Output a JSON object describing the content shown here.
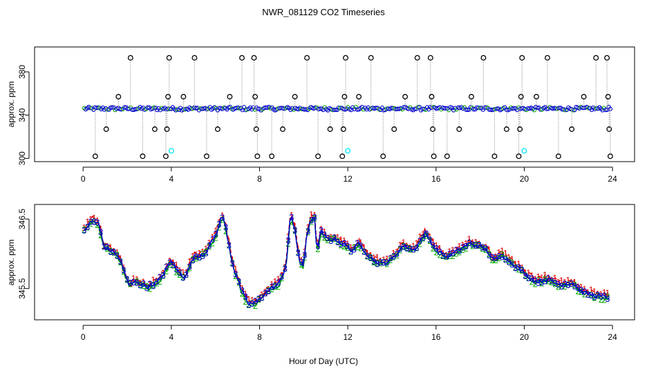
{
  "chart_data": [
    {
      "type": "scatter",
      "title": "NWR_081129  CO2 Timeseries",
      "xlabel": "",
      "ylabel": "approx. ppm",
      "xlim": [
        -2.2,
        25.0
      ],
      "ylim": [
        297,
        403
      ],
      "xticks": [
        0,
        4,
        8,
        12,
        16,
        20,
        24
      ],
      "yticks": [
        300,
        340,
        380
      ],
      "baseline": 346,
      "baseline_ppm_range": [
        344.5,
        347.5
      ],
      "span": [
        0.05,
        23.9
      ],
      "colors": {
        "raw": "#000000",
        "baseline_blue": "#0000cc",
        "baseline_green": "#00aa00",
        "flagged": "#00e5ee",
        "connector": "#9a9a9a"
      },
      "raw_excursions": [
        {
          "x": 0.55,
          "y": 302
        },
        {
          "x": 1.05,
          "y": 327
        },
        {
          "x": 1.6,
          "y": 357
        },
        {
          "x": 2.15,
          "y": 393
        },
        {
          "x": 2.7,
          "y": 302
        },
        {
          "x": 3.25,
          "y": 327
        },
        {
          "x": 3.75,
          "y": 302
        },
        {
          "x": 3.8,
          "y": 327
        },
        {
          "x": 3.85,
          "y": 357
        },
        {
          "x": 3.9,
          "y": 393
        },
        {
          "x": 4.55,
          "y": 357
        },
        {
          "x": 5.05,
          "y": 393
        },
        {
          "x": 5.6,
          "y": 302
        },
        {
          "x": 6.1,
          "y": 327
        },
        {
          "x": 6.65,
          "y": 357
        },
        {
          "x": 7.2,
          "y": 393
        },
        {
          "x": 7.75,
          "y": 393
        },
        {
          "x": 7.8,
          "y": 357
        },
        {
          "x": 7.85,
          "y": 327
        },
        {
          "x": 7.9,
          "y": 302
        },
        {
          "x": 8.55,
          "y": 302
        },
        {
          "x": 9.05,
          "y": 327
        },
        {
          "x": 9.6,
          "y": 357
        },
        {
          "x": 10.15,
          "y": 393
        },
        {
          "x": 10.65,
          "y": 302
        },
        {
          "x": 11.2,
          "y": 327
        },
        {
          "x": 11.75,
          "y": 302
        },
        {
          "x": 11.8,
          "y": 327
        },
        {
          "x": 11.85,
          "y": 357
        },
        {
          "x": 11.9,
          "y": 393
        },
        {
          "x": 12.5,
          "y": 357
        },
        {
          "x": 13.05,
          "y": 393
        },
        {
          "x": 13.6,
          "y": 302
        },
        {
          "x": 14.1,
          "y": 327
        },
        {
          "x": 14.6,
          "y": 357
        },
        {
          "x": 15.15,
          "y": 393
        },
        {
          "x": 15.75,
          "y": 393
        },
        {
          "x": 15.8,
          "y": 357
        },
        {
          "x": 15.85,
          "y": 327
        },
        {
          "x": 15.9,
          "y": 302
        },
        {
          "x": 16.5,
          "y": 302
        },
        {
          "x": 17.05,
          "y": 327
        },
        {
          "x": 17.6,
          "y": 357
        },
        {
          "x": 18.15,
          "y": 393
        },
        {
          "x": 18.65,
          "y": 302
        },
        {
          "x": 19.2,
          "y": 327
        },
        {
          "x": 19.75,
          "y": 302
        },
        {
          "x": 19.8,
          "y": 327
        },
        {
          "x": 19.85,
          "y": 357
        },
        {
          "x": 19.9,
          "y": 393
        },
        {
          "x": 20.55,
          "y": 357
        },
        {
          "x": 21.05,
          "y": 393
        },
        {
          "x": 21.55,
          "y": 302
        },
        {
          "x": 22.15,
          "y": 327
        },
        {
          "x": 22.7,
          "y": 357
        },
        {
          "x": 23.25,
          "y": 393
        },
        {
          "x": 23.75,
          "y": 393
        },
        {
          "x": 23.8,
          "y": 357
        },
        {
          "x": 23.85,
          "y": 327
        },
        {
          "x": 23.9,
          "y": 302
        }
      ],
      "flagged": [
        {
          "x": 4.0,
          "y": 307
        },
        {
          "x": 12.0,
          "y": 307
        },
        {
          "x": 20.0,
          "y": 307
        }
      ]
    },
    {
      "type": "line",
      "title": "",
      "xlabel": "Hour of Day (UTC)",
      "ylabel": "approx. ppm",
      "xlim": [
        -2.2,
        25.0
      ],
      "ylim": [
        345.05,
        346.71
      ],
      "xticks": [
        0,
        4,
        8,
        12,
        16,
        20,
        24
      ],
      "yticks": [
        345.5,
        346.5
      ],
      "x_range": [
        0.05,
        23.85
      ],
      "point_count": 320,
      "marker_labels": [
        "1",
        "2",
        "3"
      ],
      "series": [
        {
          "name": "1",
          "color": "#dd0000",
          "line_style": "dashed",
          "label_offset": 0.04,
          "anchors": [
            [
              0.05,
              346.34
            ],
            [
              0.4,
              346.47
            ],
            [
              0.7,
              346.44
            ],
            [
              0.95,
              346.1
            ],
            [
              1.5,
              346.0
            ],
            [
              1.8,
              345.82
            ],
            [
              2.05,
              345.55
            ],
            [
              2.4,
              345.6
            ],
            [
              2.9,
              345.52
            ],
            [
              3.4,
              345.6
            ],
            [
              3.8,
              345.8
            ],
            [
              4.0,
              345.9
            ],
            [
              4.3,
              345.74
            ],
            [
              4.6,
              345.66
            ],
            [
              5.0,
              345.95
            ],
            [
              5.5,
              346.0
            ],
            [
              6.0,
              346.26
            ],
            [
              6.3,
              346.55
            ],
            [
              6.45,
              346.4
            ],
            [
              6.8,
              345.82
            ],
            [
              7.2,
              345.45
            ],
            [
              7.5,
              345.28
            ],
            [
              7.85,
              345.3
            ],
            [
              8.3,
              345.45
            ],
            [
              8.9,
              345.58
            ],
            [
              9.2,
              345.83
            ],
            [
              9.4,
              346.55
            ],
            [
              9.6,
              346.35
            ],
            [
              9.8,
              345.9
            ],
            [
              10.0,
              345.8
            ],
            [
              10.1,
              346.2
            ],
            [
              10.3,
              346.5
            ],
            [
              10.5,
              346.5
            ],
            [
              10.6,
              346.05
            ],
            [
              10.8,
              346.32
            ],
            [
              11.0,
              346.22
            ],
            [
              11.5,
              346.2
            ],
            [
              12.2,
              346.05
            ],
            [
              12.5,
              346.15
            ],
            [
              13.0,
              345.95
            ],
            [
              13.5,
              345.85
            ],
            [
              14.0,
              345.92
            ],
            [
              14.5,
              346.12
            ],
            [
              15.0,
              346.05
            ],
            [
              15.5,
              346.3
            ],
            [
              16.0,
              346.06
            ],
            [
              16.5,
              345.95
            ],
            [
              17.0,
              346.05
            ],
            [
              17.5,
              346.15
            ],
            [
              18.0,
              346.1
            ],
            [
              18.3,
              346.05
            ],
            [
              18.6,
              345.9
            ],
            [
              19.0,
              345.98
            ],
            [
              19.5,
              345.85
            ],
            [
              20.0,
              345.72
            ],
            [
              20.5,
              345.6
            ],
            [
              21.0,
              345.63
            ],
            [
              21.6,
              345.56
            ],
            [
              22.2,
              345.58
            ],
            [
              22.6,
              345.45
            ],
            [
              23.2,
              345.4
            ],
            [
              23.85,
              345.37
            ]
          ]
        },
        {
          "name": "2",
          "color": "#00aa00",
          "line_style": "solid",
          "label_offset": -0.015,
          "anchors": [
            [
              0.05,
              346.34
            ],
            [
              0.4,
              346.47
            ],
            [
              0.7,
              346.44
            ],
            [
              0.95,
              346.1
            ],
            [
              1.5,
              346.0
            ],
            [
              1.8,
              345.82
            ],
            [
              2.05,
              345.55
            ],
            [
              2.4,
              345.6
            ],
            [
              2.9,
              345.52
            ],
            [
              3.4,
              345.6
            ],
            [
              3.8,
              345.8
            ],
            [
              4.0,
              345.9
            ],
            [
              4.3,
              345.74
            ],
            [
              4.6,
              345.66
            ],
            [
              5.0,
              345.95
            ],
            [
              5.5,
              346.0
            ],
            [
              6.0,
              346.26
            ],
            [
              6.3,
              346.55
            ],
            [
              6.45,
              346.4
            ],
            [
              6.8,
              345.82
            ],
            [
              7.2,
              345.45
            ],
            [
              7.5,
              345.28
            ],
            [
              7.85,
              345.3
            ],
            [
              8.3,
              345.45
            ],
            [
              8.9,
              345.58
            ],
            [
              9.2,
              345.83
            ],
            [
              9.4,
              346.55
            ],
            [
              9.6,
              346.35
            ],
            [
              9.8,
              345.9
            ],
            [
              10.0,
              345.8
            ],
            [
              10.1,
              346.2
            ],
            [
              10.3,
              346.5
            ],
            [
              10.5,
              346.5
            ],
            [
              10.6,
              346.05
            ],
            [
              10.8,
              346.32
            ],
            [
              11.0,
              346.22
            ],
            [
              11.5,
              346.2
            ],
            [
              12.2,
              346.05
            ],
            [
              12.5,
              346.15
            ],
            [
              13.0,
              345.95
            ],
            [
              13.5,
              345.85
            ],
            [
              14.0,
              345.92
            ],
            [
              14.5,
              346.12
            ],
            [
              15.0,
              346.05
            ],
            [
              15.5,
              346.3
            ],
            [
              16.0,
              346.06
            ],
            [
              16.5,
              345.95
            ],
            [
              17.0,
              346.05
            ],
            [
              17.5,
              346.15
            ],
            [
              18.0,
              346.1
            ],
            [
              18.3,
              346.05
            ],
            [
              18.6,
              345.9
            ],
            [
              19.0,
              345.98
            ],
            [
              19.5,
              345.85
            ],
            [
              20.0,
              345.72
            ],
            [
              20.5,
              345.6
            ],
            [
              21.0,
              345.63
            ],
            [
              21.6,
              345.56
            ],
            [
              22.2,
              345.58
            ],
            [
              22.6,
              345.45
            ],
            [
              23.2,
              345.4
            ],
            [
              23.85,
              345.37
            ]
          ]
        },
        {
          "name": "3",
          "color": "#0000cc",
          "line_style": "solid",
          "label_offset": 0.0,
          "anchors": [
            [
              0.05,
              346.34
            ],
            [
              0.4,
              346.47
            ],
            [
              0.7,
              346.44
            ],
            [
              0.95,
              346.1
            ],
            [
              1.5,
              346.0
            ],
            [
              1.8,
              345.82
            ],
            [
              2.05,
              345.55
            ],
            [
              2.4,
              345.6
            ],
            [
              2.9,
              345.52
            ],
            [
              3.4,
              345.6
            ],
            [
              3.8,
              345.8
            ],
            [
              4.0,
              345.9
            ],
            [
              4.3,
              345.74
            ],
            [
              4.6,
              345.66
            ],
            [
              5.0,
              345.95
            ],
            [
              5.5,
              346.0
            ],
            [
              6.0,
              346.26
            ],
            [
              6.3,
              346.55
            ],
            [
              6.45,
              346.4
            ],
            [
              6.8,
              345.82
            ],
            [
              7.2,
              345.45
            ],
            [
              7.5,
              345.28
            ],
            [
              7.85,
              345.3
            ],
            [
              8.3,
              345.45
            ],
            [
              8.9,
              345.58
            ],
            [
              9.2,
              345.83
            ],
            [
              9.4,
              346.55
            ],
            [
              9.6,
              346.35
            ],
            [
              9.8,
              345.9
            ],
            [
              10.0,
              345.8
            ],
            [
              10.1,
              346.2
            ],
            [
              10.3,
              346.5
            ],
            [
              10.5,
              346.5
            ],
            [
              10.6,
              346.05
            ],
            [
              10.8,
              346.32
            ],
            [
              11.0,
              346.22
            ],
            [
              11.5,
              346.2
            ],
            [
              12.2,
              346.05
            ],
            [
              12.5,
              346.15
            ],
            [
              13.0,
              345.95
            ],
            [
              13.5,
              345.85
            ],
            [
              14.0,
              345.92
            ],
            [
              14.5,
              346.12
            ],
            [
              15.0,
              346.05
            ],
            [
              15.5,
              346.3
            ],
            [
              16.0,
              346.06
            ],
            [
              16.5,
              345.95
            ],
            [
              17.0,
              346.05
            ],
            [
              17.5,
              346.15
            ],
            [
              18.0,
              346.1
            ],
            [
              18.3,
              346.05
            ],
            [
              18.6,
              345.9
            ],
            [
              19.0,
              345.98
            ],
            [
              19.5,
              345.85
            ],
            [
              20.0,
              345.72
            ],
            [
              20.5,
              345.6
            ],
            [
              21.0,
              345.63
            ],
            [
              21.6,
              345.56
            ],
            [
              22.2,
              345.58
            ],
            [
              22.6,
              345.45
            ],
            [
              23.2,
              345.4
            ],
            [
              23.85,
              345.37
            ]
          ]
        }
      ]
    }
  ]
}
